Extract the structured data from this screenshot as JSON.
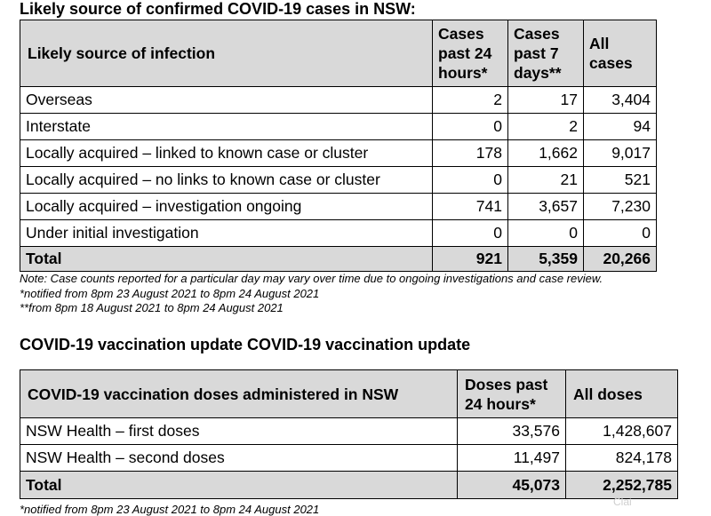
{
  "table1": {
    "title": "Likely source of confirmed COVID-19 cases in NSW:",
    "headers": {
      "source": "Likely source of infection",
      "col1": [
        "Cases",
        "past 24",
        "hours*"
      ],
      "col2": [
        "Cases",
        "past 7",
        "days**"
      ],
      "col3": [
        "All",
        "cases"
      ]
    },
    "rows": [
      {
        "label": "Overseas",
        "c24": "2",
        "c7": "17",
        "all": "3,404"
      },
      {
        "label": "Interstate",
        "c24": "0",
        "c7": "2",
        "all": "94"
      },
      {
        "label": "Locally acquired – linked to known case or cluster",
        "c24": "178",
        "c7": "1,662",
        "all": "9,017"
      },
      {
        "label": "Locally acquired – no links to known case or cluster",
        "c24": "0",
        "c7": "21",
        "all": "521"
      },
      {
        "label": "Locally acquired – investigation ongoing",
        "c24": "741",
        "c7": "3,657",
        "all": "7,230"
      },
      {
        "label": "Under initial investigation",
        "c24": "0",
        "c7": "0",
        "all": "0"
      }
    ],
    "total": {
      "label": "Total",
      "c24": "921",
      "c7": "5,359",
      "all": "20,266"
    },
    "notes": [
      "Note: Case counts reported for a particular day may vary over time due to ongoing investigations and case review.",
      "*notified from 8pm 23 August 2021 to 8pm 24 August 2021",
      "**from 8pm 18 August 2021 to 8pm 24 August 2021"
    ]
  },
  "table2": {
    "title": "COVID-19 vaccination update COVID-19 vaccination update",
    "headers": {
      "label": "COVID-19 vaccination doses administered in NSW",
      "col1": [
        "Doses past",
        "24 hours*"
      ],
      "col2": "All doses"
    },
    "rows": [
      {
        "label": "NSW Health – first doses",
        "d24": "33,576",
        "all": "1,428,607"
      },
      {
        "label": "NSW Health – second doses",
        "d24": "11,497",
        "all": "824,178"
      }
    ],
    "total": {
      "label": "Total",
      "d24": "45,073",
      "all": "2,252,785"
    },
    "note": "*notified from 8pm 23 August 2021 to 8pm 24 August 2021"
  },
  "watermark": "Clai"
}
